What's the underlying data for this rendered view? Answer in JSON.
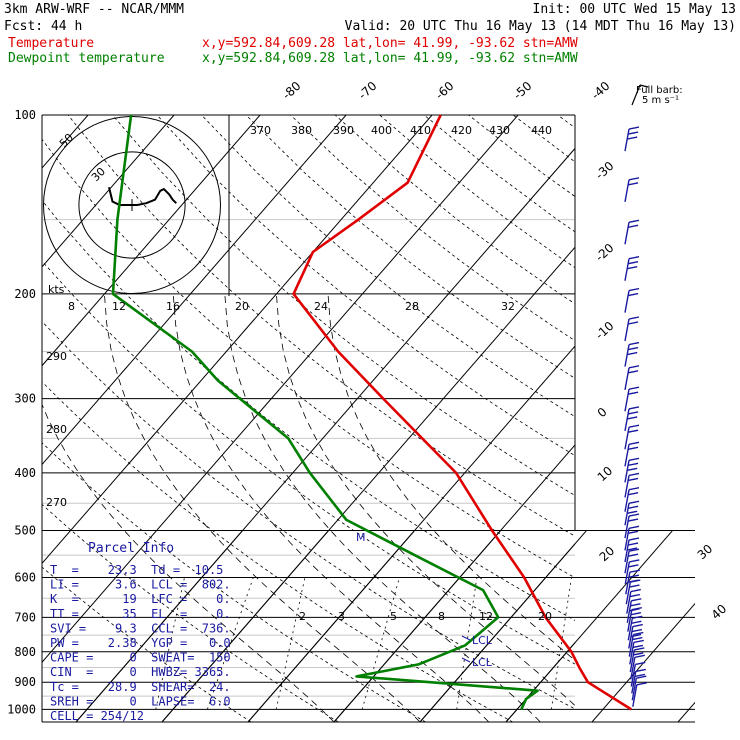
{
  "header": {
    "model": "3km ARW-WRF -- NCAR/MMM",
    "init": "Init: 00 UTC Wed 15 May 13",
    "fcst": "Fcst:   44 h",
    "valid": "Valid: 20 UTC Thu 16 May 13 (14 MDT Thu 16 May 13)",
    "temp_label": "Temperature",
    "temp_info": "x,y=592.84,609.28   lat,lon= 41.99, -93.62  stn=AMW",
    "dew_label": "Dewpoint temperature",
    "dew_info": "x,y=592.84,609.28   lat,lon= 41.99, -93.62  stn=AMW",
    "barb_label_1": "Full barb:",
    "barb_label_2": "5 m s⁻¹"
  },
  "colors": {
    "temperature": "#e00000",
    "dewpoint": "#008000",
    "wind_barbs": "#1a1aa0",
    "grid": "#000000"
  },
  "chart_data": {
    "type": "line",
    "title": "Skew-T log-P diagram",
    "pressure_levels": [
      "100",
      "200",
      "300",
      "400",
      "500",
      "600",
      "700",
      "800",
      "900",
      "1000"
    ],
    "isotherm_labels": [
      "-80",
      "-70",
      "-60",
      "-50",
      "-40",
      "-30",
      "-20",
      "-10",
      "0",
      "10",
      "20",
      "30",
      "40"
    ],
    "theta_labels": [
      "370",
      "380",
      "390",
      "400",
      "410",
      "420",
      "430",
      "440"
    ],
    "mixing_ratio_labels_top": [
      "8",
      "12",
      "16",
      "20",
      "24",
      "28",
      "32"
    ],
    "mixing_ratio_labels_bottom": [
      "2",
      "3",
      "5",
      "8",
      "12",
      "20"
    ],
    "theta_side_labels": [
      "290",
      "280",
      "270"
    ],
    "series": [
      {
        "name": "Temperature",
        "x_unit": "°C",
        "points": [
          {
            "p": 1000,
            "t": 23.3
          },
          {
            "p": 950,
            "t": 19.5
          },
          {
            "p": 900,
            "t": 15.5
          },
          {
            "p": 850,
            "t": 13.0
          },
          {
            "p": 800,
            "t": 10.5
          },
          {
            "p": 700,
            "t": 4.0
          },
          {
            "p": 600,
            "t": -2.5
          },
          {
            "p": 500,
            "t": -11.0
          },
          {
            "p": 400,
            "t": -21.0
          },
          {
            "p": 300,
            "t": -37.0
          },
          {
            "p": 250,
            "t": -47.0
          },
          {
            "p": 200,
            "t": -58.0
          },
          {
            "p": 170,
            "t": -60.0
          },
          {
            "p": 150,
            "t": -58.0
          },
          {
            "p": 130,
            "t": -56.0
          },
          {
            "p": 100,
            "t": -59.0
          }
        ]
      },
      {
        "name": "Dewpoint temperature",
        "x_unit": "°C",
        "points": [
          {
            "p": 1000,
            "t": 10.5
          },
          {
            "p": 960,
            "t": 10.0
          },
          {
            "p": 930,
            "t": 10.5
          },
          {
            "p": 880,
            "t": -12.0
          },
          {
            "p": 840,
            "t": -6.0
          },
          {
            "p": 780,
            "t": -2.5
          },
          {
            "p": 700,
            "t": -1.5
          },
          {
            "p": 630,
            "t": -6.0
          },
          {
            "p": 560,
            "t": -16.0
          },
          {
            "p": 480,
            "t": -29.0
          },
          {
            "p": 400,
            "t": -38.0
          },
          {
            "p": 350,
            "t": -44.0
          },
          {
            "p": 280,
            "t": -58.0
          },
          {
            "p": 250,
            "t": -64.0
          },
          {
            "p": 200,
            "t": -79.0
          },
          {
            "p": 150,
            "t": -86.0
          },
          {
            "p": 100,
            "t": -95.0
          }
        ]
      }
    ],
    "hodograph": {
      "units": "kts",
      "ring_labels": [
        "50",
        "30"
      ],
      "ring_speeds_kts": [
        50,
        30
      ],
      "trace_kts": [
        [
          -13,
          10
        ],
        [
          -11,
          2
        ],
        [
          -7,
          0
        ],
        [
          -2,
          0
        ],
        [
          3,
          0
        ],
        [
          8,
          1
        ],
        [
          13,
          3
        ],
        [
          16,
          8
        ],
        [
          18,
          9
        ],
        [
          21,
          6
        ],
        [
          23,
          3
        ],
        [
          25,
          1
        ]
      ]
    },
    "wind_barbs": [
      {
        "p": 120,
        "speed_kts": 25
      },
      {
        "p": 160,
        "speed_kts": 30
      },
      {
        "p": 200,
        "speed_kts": 25
      },
      {
        "p": 250,
        "speed_kts": 20
      },
      {
        "p": 300,
        "speed_kts": 15
      },
      {
        "p": 350,
        "speed_kts": 15
      },
      {
        "p": 400,
        "speed_kts": 15
      },
      {
        "p": 450,
        "speed_kts": 15
      },
      {
        "p": 500,
        "speed_kts": 15
      },
      {
        "p": 550,
        "speed_kts": 15
      },
      {
        "p": 600,
        "speed_kts": 15
      },
      {
        "p": 650,
        "speed_kts": 15
      },
      {
        "p": 700,
        "speed_kts": 10
      },
      {
        "p": 750,
        "speed_kts": 10
      },
      {
        "p": 800,
        "speed_kts": 10
      },
      {
        "p": 850,
        "speed_kts": 10
      },
      {
        "p": 900,
        "speed_kts": 15
      },
      {
        "p": 950,
        "speed_kts": 15
      },
      {
        "p": 1000,
        "speed_kts": 10
      }
    ],
    "parcel_markers": [
      "LCL",
      "LCL"
    ],
    "grid": true
  },
  "parcel_info": {
    "title": "Parcel Info",
    "rows": [
      "T  =    23.3  Td =  10.5",
      "LI =     3.6  LCL =  802.",
      "K  =      19  LFC =    0.",
      "TT =      35  EL  =    0.",
      "SVI =    9.3  CCL =  736.",
      "PW =    2.38  YGP =   0.0",
      "CAPE =     0  SWEAT=  150",
      "CIN  =     0  HWBZ= 3365.",
      "Tc =    28.9  SHEAR=  24.",
      "SREH =     0  LAPSE=  6.0",
      "CELL = 254/12"
    ]
  }
}
